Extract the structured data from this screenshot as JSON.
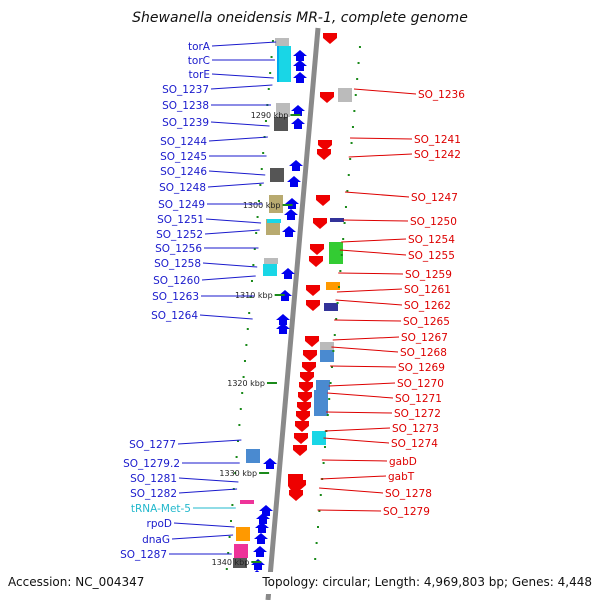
{
  "title": "Shewanella oneidensis MR-1, complete genome",
  "footer": {
    "accession": "Accession: NC_004347",
    "topology": "Topology: circular; Length: 4,969,803 bp; Genes: 4,448"
  },
  "colors": {
    "left_label": "#1a1acc",
    "right_label": "#dd0000",
    "trna_label": "#22b8cc",
    "backbone": "#8a8a8a",
    "forward_gene": "#0000ee",
    "reverse_gene": "#ee0000",
    "tick": "#1a8a1a"
  },
  "scale_labels": [
    "1290 kbp",
    "1300 kbp",
    "1310 kbp",
    "1320 kbp",
    "1330 kbp",
    "1340 kbp"
  ],
  "left_genes": [
    "torA",
    "torC",
    "torE",
    "SO_1237",
    "SO_1238",
    "SO_1239",
    "SO_1244",
    "SO_1245",
    "SO_1246",
    "SO_1248",
    "SO_1249",
    "SO_1251",
    "SO_1252",
    "SO_1256",
    "SO_1258",
    "SO_1260",
    "SO_1263",
    "SO_1264",
    "SO_1277",
    "SO_1279.2",
    "SO_1281",
    "SO_1282",
    "tRNA-Met-5",
    "rpoD",
    "dnaG",
    "SO_1287"
  ],
  "right_genes": [
    "SO_1236",
    "SO_1241",
    "SO_1242",
    "SO_1247",
    "SO_1250",
    "SO_1254",
    "SO_1255",
    "SO_1259",
    "SO_1261",
    "SO_1262",
    "SO_1265",
    "SO_1267",
    "SO_1268",
    "SO_1269",
    "SO_1270",
    "SO_1271",
    "SO_1272",
    "SO_1273",
    "SO_1274",
    "gabD",
    "gabT",
    "SO_1278",
    "SO_1279"
  ]
}
